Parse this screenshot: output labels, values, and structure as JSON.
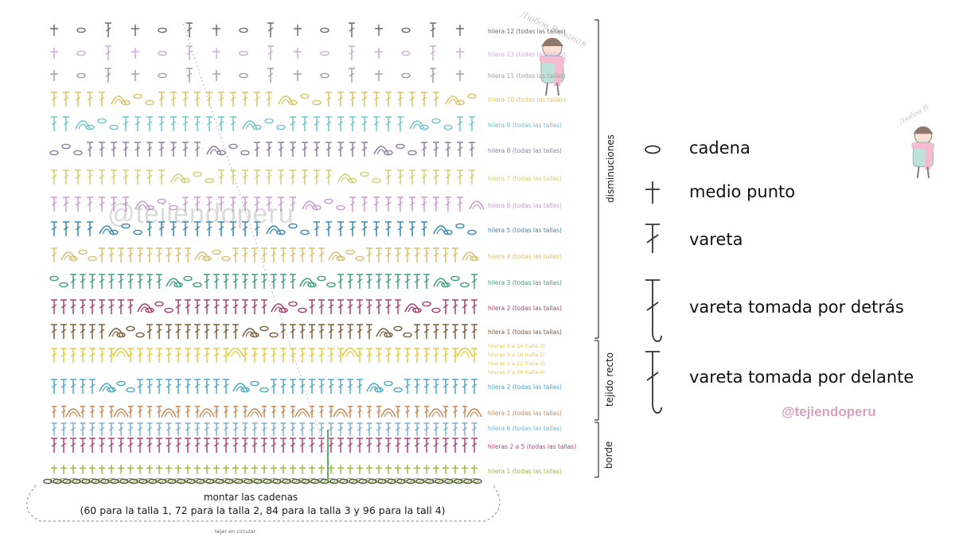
{
  "rows": [
    {
      "label": "hilera 12 (todas las tallas)",
      "color": "#6b6b6b"
    },
    {
      "label": "hilera 13 (todas las tallas)",
      "color": "#c9aed4"
    },
    {
      "label": "hilera 11 (todas las tallas)",
      "color": "#a0a0a0"
    },
    {
      "label": "hilera 10 (todas las tallas)",
      "color": "#d9c466"
    },
    {
      "label": "hilera 9 (todas las tallas)",
      "color": "#6cc4cc"
    },
    {
      "label": "hilera 8 (todas las tallas)",
      "color": "#8e7ea0"
    },
    {
      "label": "hilera 7 (todas las tallas)",
      "color": "#cfcf70"
    },
    {
      "label": "hilera 6 (todas las tallas)",
      "color": "#c89ad0"
    },
    {
      "label": "hilera 5 (todas las tallas)",
      "color": "#3a86b0"
    },
    {
      "label": "hilera 4 (todas las tallas)",
      "color": "#d8c070"
    },
    {
      "label": "hilera 3 (todas las tallas)",
      "color": "#3f9e7e"
    },
    {
      "label": "hilera 2 (todas las tallas)",
      "color": "#a83f6e"
    },
    {
      "label": "hilera 1 (todas las tallas)",
      "color": "#7b5e3c"
    },
    {
      "label": "hileras 3 a 14 (talla 1)",
      "color": "#e0cc40"
    },
    {
      "label": "hileras 3 a 18 (talla 2)",
      "color": "#e0cc40"
    },
    {
      "label": "hileras 3 a 22 (talla 3)",
      "color": "#e0cc40"
    },
    {
      "label": "hileras 3 a 26 (talla 4)",
      "color": "#e0cc40"
    },
    {
      "label": "hilera 2 (todas las tallas)",
      "color": "#4aa8c8"
    },
    {
      "label": "hilera 1 (todas las tallas)",
      "color": "#c88a5a"
    },
    {
      "label": "hilera 6 (todas las tallas)",
      "color": "#7ab0d8"
    },
    {
      "label": "hileras 2 a 5 (todas las tallas)",
      "color": "#b03f7a"
    },
    {
      "label": "hilera 1 (todas las tallas)",
      "color": "#9ab84a"
    }
  ],
  "groups": {
    "disminuciones": "disminuciones",
    "tejido_recto": "tejido recto",
    "borde": "borde"
  },
  "legend": [
    {
      "icon": "chain-icon",
      "label": "cadena"
    },
    {
      "icon": "single-crochet-icon",
      "label": "medio punto"
    },
    {
      "icon": "double-crochet-icon",
      "label": "vareta"
    },
    {
      "icon": "back-post-dc-icon",
      "label": "vareta tomada por detrás"
    },
    {
      "icon": "front-post-dc-icon",
      "label": "vareta tomada por delante"
    }
  ],
  "handle": "@tejiendoperu",
  "watermark": "@tejiendoperu",
  "cast_on": {
    "title": "montar las cadenas",
    "detail": "(60 para la talla 1, 72 para la talla 2, 84 para la talla 3 y 96 para la tall 4)",
    "note": "tejer en circular"
  }
}
